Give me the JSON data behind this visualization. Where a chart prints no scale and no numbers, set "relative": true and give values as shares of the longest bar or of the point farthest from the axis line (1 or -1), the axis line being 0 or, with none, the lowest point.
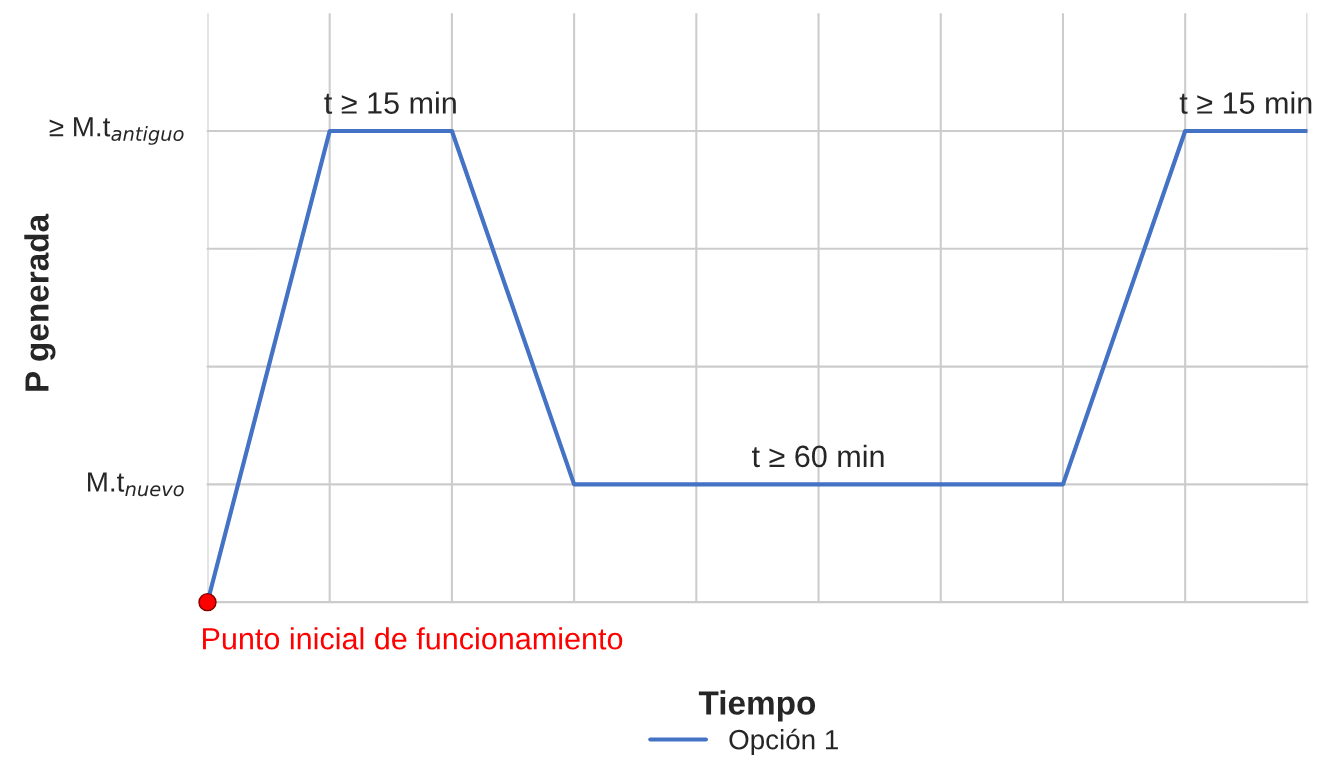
{
  "chart_data": {
    "type": "line",
    "relative": true,
    "xlabel": "Tiempo",
    "ylabel": "P generada",
    "categories": [
      null,
      null,
      null,
      null,
      null,
      null,
      null,
      null,
      null,
      null
    ],
    "series": [
      {
        "name": "Opción 1",
        "color": "#4472c4",
        "values": [
          0,
          1,
          1,
          0.25,
          0.25,
          0.25,
          0.25,
          0.25,
          1,
          1
        ]
      }
    ],
    "ref_lines": [
      {
        "axis": "y",
        "value": 0.25,
        "label": "M.t$_{nuevo}$",
        "color": "#cccccc"
      },
      {
        "axis": "y",
        "value": 0.5,
        "label": null,
        "color": "#cccccc"
      },
      {
        "axis": "y",
        "value": 0.75,
        "label": null,
        "color": "#cccccc"
      },
      {
        "axis": "y",
        "value": 1,
        "label": "≥ M.t$_{antiguo}$",
        "color": "#cccccc"
      }
    ],
    "ylim": [
      0,
      1.25
    ],
    "annotations": [
      "t ≥ 15 min",
      "t ≥ 60 min",
      "t ≥ 15 min",
      "Punto inicial de funcionamiento"
    ],
    "grid": "x",
    "legend": "bottom"
  }
}
